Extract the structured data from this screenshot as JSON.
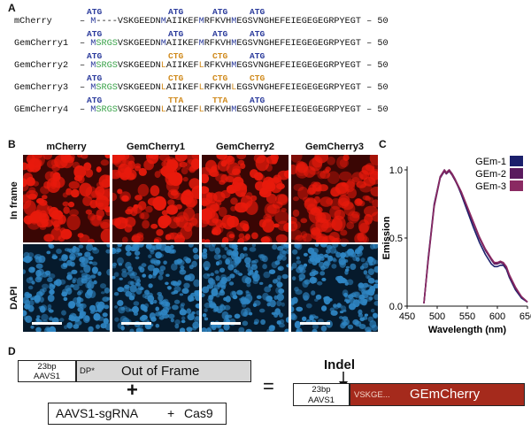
{
  "panels": {
    "a": "A",
    "b": "B",
    "c": "C",
    "d": "D"
  },
  "panel_a": {
    "rows": [
      {
        "name": "mCherry",
        "prefix": "– ",
        "m1": "M",
        "dash": "----",
        "mid": "VSKGEEDN",
        "r1": "M",
        "mid2": "AIIKEF",
        "r2": "M",
        "mid3": "RFKVH",
        "r3": "M",
        "tail": "EGSVNGHEFEIEGEGEGRPYEGT – 50"
      },
      {
        "name": "GemCherry1",
        "prefix": "– ",
        "m1": "M",
        "green": "SRGS",
        "mid": "VSKGEEDN",
        "r1": "M",
        "mid2": "AIIKEF",
        "r2": "M",
        "mid3": "RFKVH",
        "r3": "M",
        "tail": "EGSVNGHEFEIEGEGEGRPYEGT – 50"
      },
      {
        "name": "GemCherry2",
        "prefix": "– ",
        "m1": "M",
        "green": "SRGS",
        "mid": "VSKGEEDN",
        "r1": "L",
        "mid2": "AIIKEF",
        "r2": "L",
        "mid3": "RFKVH",
        "r3": "M",
        "tail": "EGSVNGHEFEIEGEGEGRPYEGT – 50"
      },
      {
        "name": "GemCherry3",
        "prefix": "– ",
        "m1": "M",
        "green": "SRGS",
        "mid": "VSKGEEDN",
        "r1": "L",
        "mid2": "AIIKEF",
        "r2": "L",
        "mid3": "RFKVH",
        "r3": "L",
        "tail": "EGSVNGHEFEIEGEGEGRPYEGT – 50"
      },
      {
        "name": "GEmCherry4",
        "prefix": "– ",
        "m1": "M",
        "green": "SRGS",
        "mid": "VSKGEEDN",
        "r1": "L",
        "mid2": "AIIKEF",
        "r2": "L",
        "mid3": "RFKVH",
        "r3": "M",
        "tail": "EGSVNGHEFEIEGEGEGRPYEGT – 50"
      }
    ],
    "codons": {
      "atg": "ATG",
      "ctg": "CTG",
      "tta": "TTA"
    }
  },
  "panel_b": {
    "columns": [
      "mCherry",
      "GemCherry1",
      "GemCherry2",
      "GemCherry3"
    ],
    "rows": [
      "In frame",
      "DAPI"
    ]
  },
  "colors": {
    "red_cells": "#e81a0c",
    "blue_cells": "#2f86c4",
    "plot_navy": "#1b1f6b",
    "plot_purple1": "#5a1a5e",
    "plot_purple2": "#8a2a62",
    "gem_box": "#a52a1c"
  },
  "chart_data": {
    "type": "line",
    "title": "",
    "xlabel": "Wavelength (nm)",
    "ylabel": "Emission",
    "xlim": [
      450,
      650
    ],
    "ylim": [
      0,
      1.0
    ],
    "xticks": [
      "450",
      "500",
      "550",
      "600",
      "650"
    ],
    "yticks": [
      "0.0",
      "0.5",
      "1.0"
    ],
    "legend": [
      "GEm-1",
      "GEm-2",
      "GEm-3"
    ],
    "series": [
      {
        "name": "GEm-1",
        "x": [
          478,
          485,
          495,
          505,
          512,
          515,
          520,
          525,
          530,
          540,
          550,
          560,
          570,
          580,
          590,
          595,
          600,
          605,
          610,
          615,
          620,
          630,
          640,
          650
        ],
        "values": [
          0.02,
          0.35,
          0.75,
          0.95,
          1.0,
          0.98,
          1.0,
          0.97,
          0.93,
          0.82,
          0.7,
          0.58,
          0.47,
          0.38,
          0.31,
          0.29,
          0.29,
          0.3,
          0.3,
          0.27,
          0.21,
          0.12,
          0.06,
          0.03
        ]
      },
      {
        "name": "GEm-2",
        "x": [
          478,
          485,
          495,
          505,
          512,
          515,
          520,
          525,
          530,
          540,
          550,
          560,
          570,
          580,
          590,
          595,
          600,
          605,
          610,
          615,
          620,
          630,
          640,
          650
        ],
        "values": [
          0.02,
          0.33,
          0.73,
          0.94,
          0.99,
          0.97,
          0.99,
          0.96,
          0.92,
          0.83,
          0.72,
          0.61,
          0.5,
          0.41,
          0.34,
          0.31,
          0.31,
          0.32,
          0.31,
          0.28,
          0.22,
          0.13,
          0.07,
          0.03
        ]
      },
      {
        "name": "GEm-3",
        "x": [
          478,
          485,
          495,
          505,
          512,
          515,
          520,
          525,
          530,
          540,
          550,
          560,
          570,
          580,
          590,
          595,
          600,
          605,
          610,
          615,
          620,
          630,
          640,
          650
        ],
        "values": [
          0.02,
          0.34,
          0.74,
          0.95,
          1.0,
          0.98,
          1.0,
          0.97,
          0.93,
          0.84,
          0.73,
          0.62,
          0.51,
          0.42,
          0.35,
          0.32,
          0.32,
          0.33,
          0.32,
          0.29,
          0.23,
          0.14,
          0.07,
          0.03
        ]
      }
    ]
  },
  "panel_d": {
    "aavs1_top": "23bp",
    "aavs1_bottom": "AAVS1",
    "dp": "DP*",
    "out_of_frame": "Out of Frame",
    "plus": "+",
    "equals": "=",
    "sgrna": "AAVS1-sgRNA",
    "plus2": "+",
    "cas9": "Cas9",
    "indel": "Indel",
    "vskge": "VSKGE...",
    "gemcherry": "GEmCherry"
  }
}
